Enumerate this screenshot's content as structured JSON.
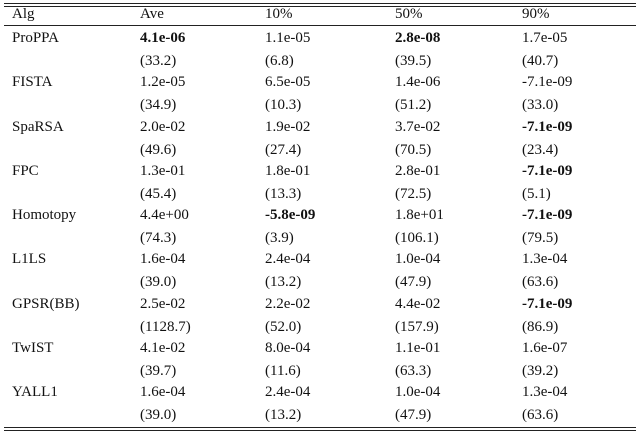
{
  "table": {
    "header": [
      "Alg",
      "Ave",
      "10%",
      "50%",
      "90%"
    ],
    "rows": [
      {
        "alg": "ProPPA",
        "values": [
          "4.1e-06",
          "1.1e-05",
          "2.8e-08",
          "1.7e-05"
        ],
        "times": [
          "(33.2)",
          "(6.8)",
          "(39.5)",
          "(40.7)"
        ],
        "bold": [
          true,
          false,
          true,
          false
        ]
      },
      {
        "alg": "FISTA",
        "values": [
          "1.2e-05",
          "6.5e-05",
          "1.4e-06",
          "-7.1e-09"
        ],
        "times": [
          "(34.9)",
          "(10.3)",
          "(51.2)",
          "(33.0)"
        ],
        "bold": [
          false,
          false,
          false,
          false
        ]
      },
      {
        "alg": "SpaRSA",
        "values": [
          "2.0e-02",
          "1.9e-02",
          "3.7e-02",
          "-7.1e-09"
        ],
        "times": [
          "(49.6)",
          "(27.4)",
          "(70.5)",
          "(23.4)"
        ],
        "bold": [
          false,
          false,
          false,
          true
        ]
      },
      {
        "alg": "FPC",
        "values": [
          "1.3e-01",
          "1.8e-01",
          "2.8e-01",
          "-7.1e-09"
        ],
        "times": [
          "(45.4)",
          "(13.3)",
          "(72.5)",
          "(5.1)"
        ],
        "bold": [
          false,
          false,
          false,
          true
        ]
      },
      {
        "alg": "Homotopy",
        "values": [
          "4.4e+00",
          "-5.8e-09",
          "1.8e+01",
          "-7.1e-09"
        ],
        "times": [
          "(74.3)",
          "(3.9)",
          "(106.1)",
          "(79.5)"
        ],
        "bold": [
          false,
          true,
          false,
          true
        ]
      },
      {
        "alg": "L1LS",
        "values": [
          "1.6e-04",
          "2.4e-04",
          "1.0e-04",
          "1.3e-04"
        ],
        "times": [
          "(39.0)",
          "(13.2)",
          "(47.9)",
          "(63.6)"
        ],
        "bold": [
          false,
          false,
          false,
          false
        ]
      },
      {
        "alg": "GPSR(BB)",
        "values": [
          "2.5e-02",
          "2.2e-02",
          "4.4e-02",
          "-7.1e-09"
        ],
        "times": [
          "(1128.7)",
          "(52.0)",
          "(157.9)",
          "(86.9)"
        ],
        "bold": [
          false,
          false,
          false,
          true
        ]
      },
      {
        "alg": "TwIST",
        "values": [
          "4.1e-02",
          "8.0e-04",
          "1.1e-01",
          "1.6e-07"
        ],
        "times": [
          "(39.7)",
          "(11.6)",
          "(63.3)",
          "(39.2)"
        ],
        "bold": [
          false,
          false,
          false,
          false
        ]
      },
      {
        "alg": "YALL1",
        "values": [
          "1.6e-04",
          "2.4e-04",
          "1.0e-04",
          "1.3e-04"
        ],
        "times": [
          "(39.0)",
          "(13.2)",
          "(47.9)",
          "(63.6)"
        ],
        "bold": [
          false,
          false,
          false,
          false
        ]
      }
    ]
  }
}
